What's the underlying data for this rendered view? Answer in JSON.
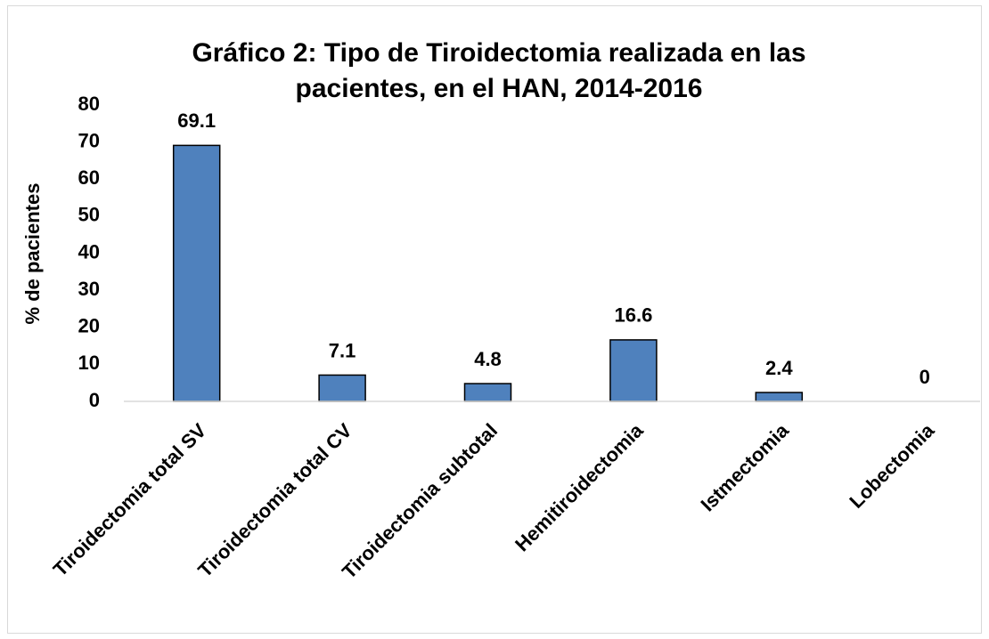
{
  "chart_data": {
    "type": "bar",
    "title": "Gráfico 2: Tipo de Tiroidectomia realizada en las pacientes, en el HAN, 2014-2016",
    "y_label": "% de pacientes",
    "categories": [
      "Tiroidectomia total SV",
      "Tiroidectomia total CV",
      "Tiroidectomia subtotal",
      "Hemitiroidectomia",
      "Istmectomia",
      "Lobectomia"
    ],
    "values": [
      69.1,
      7.1,
      4.8,
      16.6,
      2.4,
      0
    ],
    "color": "#4f81bd",
    "ylim": [
      0,
      80
    ],
    "yticks": [
      0,
      10,
      20,
      30,
      40,
      50,
      60,
      70,
      80
    ],
    "grid": false
  }
}
